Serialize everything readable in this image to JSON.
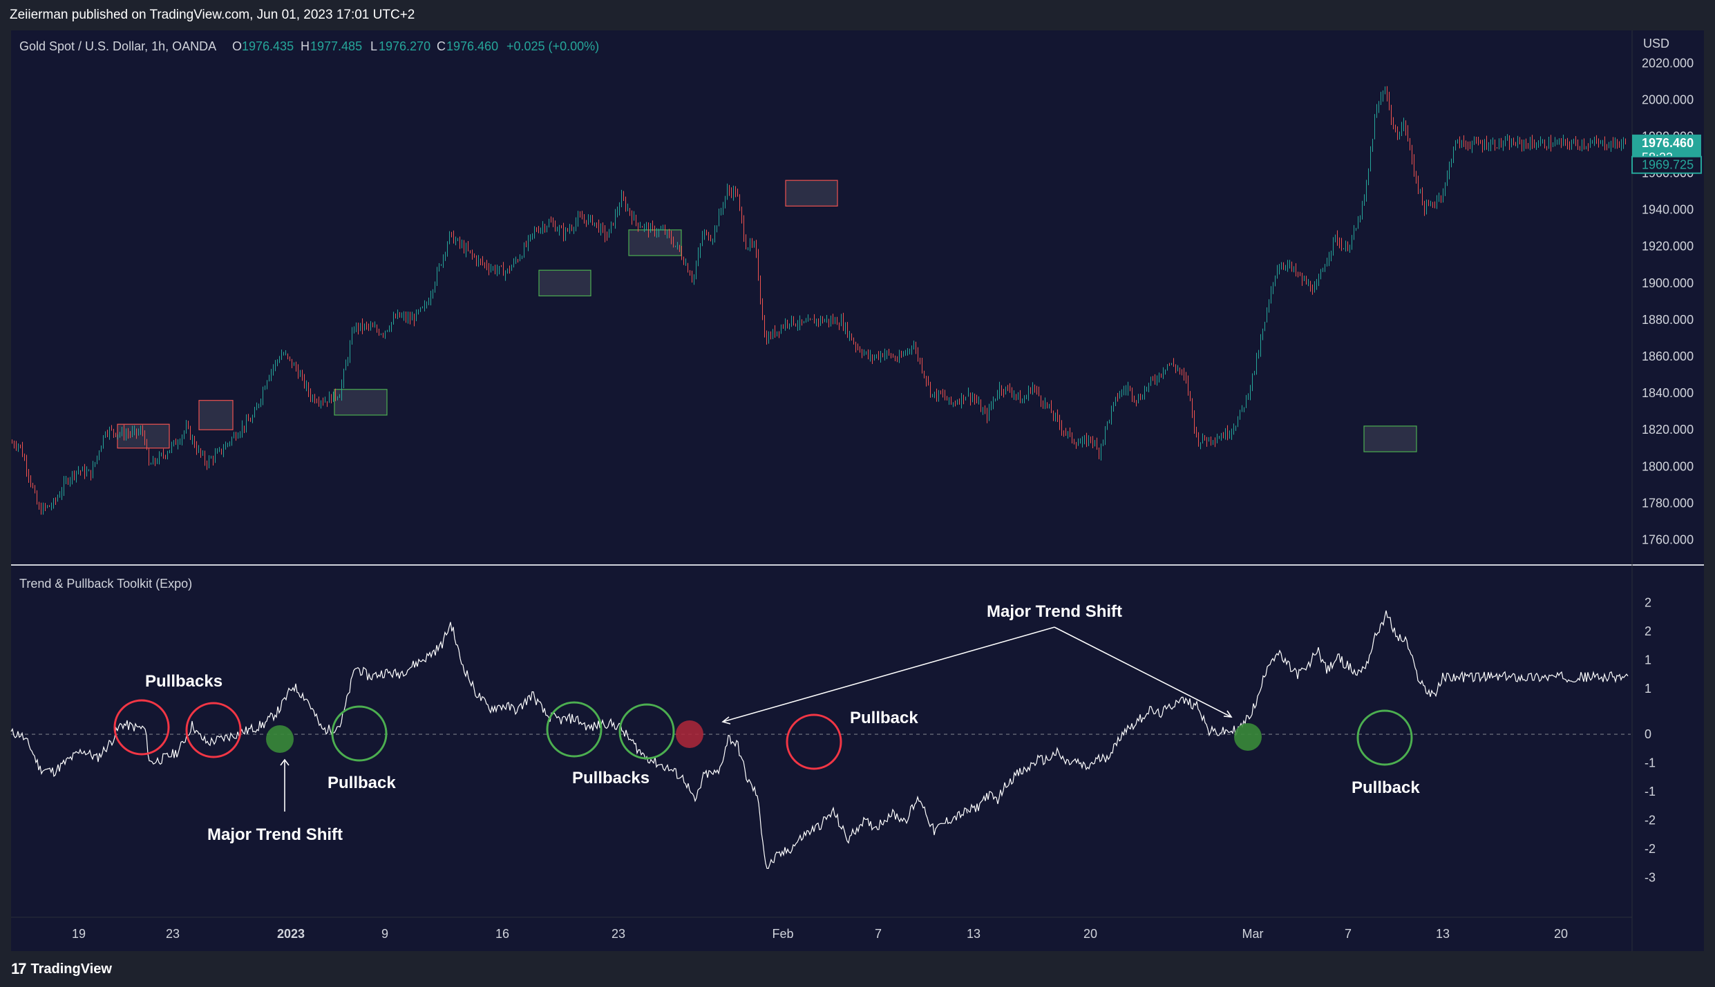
{
  "header": {
    "publisher": "Zeiierman published on TradingView.com, Jun 01, 2023 17:01 UTC+2"
  },
  "footer": {
    "brand": "TradingView"
  },
  "colors": {
    "background": "#131631",
    "up_candle": "#26a69a",
    "down_candle": "#ef5350",
    "price_tag": "#26a69a",
    "green_circle": "#4caf50",
    "red_circle": "#f23645",
    "oscillator_line": "#ffffff"
  },
  "chart_data": [
    {
      "type": "candlestick",
      "symbol_line": {
        "name": "Gold Spot / U.S. Dollar, 1h, OANDA",
        "o_label": "O",
        "o_value": "1976.435",
        "h_label": "H",
        "h_value": "1977.485",
        "l_label": "L",
        "l_value": "1976.270",
        "c_label": "C",
        "c_value": "1976.460",
        "change": "+0.025 (+0.00%)"
      },
      "currency": "USD",
      "ylim": [
        1750,
        2025
      ],
      "y_ticks": [
        "2020.000",
        "2000.000",
        "1980.000",
        "1960.000",
        "1940.000",
        "1920.000",
        "1900.000",
        "1880.000",
        "1860.000",
        "1840.000",
        "1820.000",
        "1800.000",
        "1780.000",
        "1760.000"
      ],
      "y_tick_values": [
        2020,
        2000,
        1980,
        1960,
        1940,
        1920,
        1900,
        1880,
        1860,
        1840,
        1820,
        1800,
        1780,
        1760
      ],
      "last_price_label": "1976.460",
      "countdown_label": "58:23",
      "secondary_price_label": "1969.725",
      "secondary_price_value": 1969.725,
      "last_price_value": 1976.46,
      "price_path": [
        [
          0.0,
          1813
        ],
        [
          0.01,
          1812
        ],
        [
          0.02,
          1795
        ],
        [
          0.03,
          1776
        ],
        [
          0.045,
          1779
        ],
        [
          0.06,
          1793
        ],
        [
          0.07,
          1798
        ],
        [
          0.085,
          1796
        ],
        [
          0.1,
          1820
        ],
        [
          0.115,
          1818
        ],
        [
          0.13,
          1818
        ],
        [
          0.14,
          1819
        ],
        [
          0.145,
          1800
        ],
        [
          0.16,
          1806
        ],
        [
          0.175,
          1814
        ],
        [
          0.185,
          1821
        ],
        [
          0.195,
          1810
        ],
        [
          0.205,
          1802
        ],
        [
          0.22,
          1808
        ],
        [
          0.24,
          1820
        ],
        [
          0.255,
          1827
        ],
        [
          0.27,
          1850
        ],
        [
          0.285,
          1862
        ],
        [
          0.3,
          1853
        ],
        [
          0.315,
          1838
        ],
        [
          0.33,
          1836
        ],
        [
          0.345,
          1840
        ],
        [
          0.36,
          1876
        ],
        [
          0.375,
          1876
        ],
        [
          0.39,
          1873
        ],
        [
          0.405,
          1882
        ],
        [
          0.42,
          1880
        ],
        [
          0.435,
          1887
        ],
        [
          0.45,
          1910
        ],
        [
          0.46,
          1926
        ],
        [
          0.475,
          1919
        ],
        [
          0.49,
          1912
        ],
        [
          0.505,
          1908
        ],
        [
          0.52,
          1906
        ],
        [
          0.535,
          1916
        ],
        [
          0.55,
          1929
        ],
        [
          0.565,
          1933
        ],
        [
          0.58,
          1927
        ],
        [
          0.595,
          1935
        ],
        [
          0.61,
          1934
        ],
        [
          0.625,
          1925
        ],
        [
          0.64,
          1946
        ],
        [
          0.655,
          1933
        ],
        [
          0.67,
          1929
        ],
        [
          0.685,
          1928
        ],
        [
          0.7,
          1918
        ],
        [
          0.715,
          1902
        ],
        [
          0.725,
          1927
        ],
        [
          0.735,
          1925
        ],
        [
          0.75,
          1950
        ],
        [
          0.76,
          1950
        ],
        [
          0.77,
          1921
        ],
        [
          0.78,
          1919
        ],
        [
          0.79,
          1869
        ],
        [
          0.8,
          1873
        ],
        [
          0.815,
          1880
        ],
        [
          0.83,
          1877
        ],
        [
          0.845,
          1880
        ],
        [
          0.87,
          1879
        ],
        [
          0.885,
          1866
        ],
        [
          0.9,
          1859
        ],
        [
          0.915,
          1862
        ],
        [
          0.93,
          1858
        ],
        [
          0.945,
          1867
        ],
        [
          0.955,
          1853
        ],
        [
          0.965,
          1839
        ],
        [
          0.975,
          1839
        ],
        [
          0.985,
          1834
        ],
        [
          1.0,
          1839
        ]
      ],
      "price_path_2": [
        [
          0.0,
          1839
        ],
        [
          0.01,
          1838
        ],
        [
          0.03,
          1827
        ],
        [
          0.05,
          1843
        ],
        [
          0.07,
          1841
        ],
        [
          0.085,
          1835
        ],
        [
          0.1,
          1844
        ],
        [
          0.115,
          1836
        ],
        [
          0.13,
          1829
        ],
        [
          0.145,
          1821
        ],
        [
          0.16,
          1815
        ],
        [
          0.175,
          1812
        ],
        [
          0.19,
          1816
        ],
        [
          0.2,
          1807
        ],
        [
          0.215,
          1825
        ],
        [
          0.23,
          1839
        ],
        [
          0.245,
          1843
        ],
        [
          0.26,
          1836
        ],
        [
          0.275,
          1844
        ],
        [
          0.29,
          1849
        ],
        [
          0.305,
          1856
        ],
        [
          0.32,
          1854
        ],
        [
          0.335,
          1845
        ],
        [
          0.35,
          1814
        ],
        [
          0.365,
          1815
        ],
        [
          0.38,
          1816
        ],
        [
          0.395,
          1818
        ],
        [
          0.41,
          1824
        ],
        [
          0.425,
          1837
        ],
        [
          0.44,
          1857
        ],
        [
          0.455,
          1882
        ],
        [
          0.47,
          1908
        ],
        [
          0.485,
          1911
        ],
        [
          0.5,
          1905
        ],
        [
          0.515,
          1900
        ],
        [
          0.53,
          1896
        ],
        [
          0.545,
          1912
        ],
        [
          0.56,
          1925
        ],
        [
          0.575,
          1918
        ],
        [
          0.59,
          1928
        ],
        [
          0.605,
          1947
        ],
        [
          0.62,
          1991
        ],
        [
          0.635,
          2008
        ],
        [
          0.65,
          1980
        ],
        [
          0.665,
          1987
        ],
        [
          0.68,
          1960
        ],
        [
          0.695,
          1940
        ],
        [
          0.71,
          1944
        ],
        [
          0.725,
          1951
        ],
        [
          0.74,
          1976
        ]
      ],
      "supply_boxes": [
        {
          "from": 1823,
          "to": 1810
        },
        {
          "from": 1836,
          "to": 1820
        },
        {
          "from": 1956,
          "to": 1942
        }
      ],
      "demand_boxes": [
        {
          "from": 1842,
          "to": 1828
        },
        {
          "from": 1907,
          "to": 1893
        },
        {
          "from": 1929,
          "to": 1915
        },
        {
          "from": 1822,
          "to": 1808
        }
      ]
    },
    {
      "type": "line",
      "title": "Trend & Pullback Toolkit (Expo)",
      "ylim": [
        -3.1,
        2.45
      ],
      "y_ticks": [
        "2",
        "2",
        "1",
        "1",
        "0",
        "-1",
        "-1",
        "-2",
        "-2",
        "-3"
      ],
      "y_tick_values": [
        2.3,
        1.8,
        1.3,
        0.8,
        0,
        -0.5,
        -1.0,
        -1.5,
        -2.0,
        -2.5
      ],
      "zero_line": 0,
      "oscillator_path": [
        [
          0.0,
          0.02
        ],
        [
          0.01,
          0.0
        ],
        [
          0.02,
          -0.22
        ],
        [
          0.03,
          -0.6
        ],
        [
          0.045,
          -0.65
        ],
        [
          0.06,
          -0.45
        ],
        [
          0.075,
          -0.28
        ],
        [
          0.09,
          -0.42
        ],
        [
          0.105,
          -0.12
        ],
        [
          0.115,
          0.18
        ],
        [
          0.13,
          0.12
        ],
        [
          0.14,
          0.1
        ],
        [
          0.145,
          -0.5
        ],
        [
          0.16,
          -0.42
        ],
        [
          0.175,
          -0.3
        ],
        [
          0.19,
          0.18
        ],
        [
          0.195,
          0.0
        ],
        [
          0.205,
          -0.15
        ],
        [
          0.22,
          -0.08
        ],
        [
          0.235,
          0.0
        ],
        [
          0.25,
          0.08
        ],
        [
          0.265,
          0.18
        ],
        [
          0.28,
          0.42
        ],
        [
          0.295,
          0.85
        ],
        [
          0.31,
          0.6
        ],
        [
          0.325,
          0.08
        ],
        [
          0.335,
          0.08
        ],
        [
          0.345,
          0.18
        ],
        [
          0.36,
          1.18
        ],
        [
          0.375,
          1.0
        ],
        [
          0.39,
          1.08
        ],
        [
          0.405,
          1.05
        ],
        [
          0.42,
          1.2
        ],
        [
          0.435,
          1.35
        ],
        [
          0.45,
          1.55
        ],
        [
          0.46,
          1.95
        ],
        [
          0.47,
          1.3
        ],
        [
          0.485,
          0.75
        ],
        [
          0.5,
          0.45
        ],
        [
          0.515,
          0.5
        ],
        [
          0.53,
          0.42
        ],
        [
          0.545,
          0.7
        ],
        [
          0.56,
          0.32
        ],
        [
          0.575,
          0.25
        ],
        [
          0.59,
          0.28
        ],
        [
          0.605,
          0.1
        ],
        [
          0.62,
          0.2
        ],
        [
          0.635,
          0.15
        ],
        [
          0.645,
          -0.05
        ],
        [
          0.66,
          -0.35
        ],
        [
          0.675,
          -0.5
        ],
        [
          0.69,
          -0.62
        ],
        [
          0.705,
          -0.8
        ],
        [
          0.715,
          -1.2
        ],
        [
          0.725,
          -0.7
        ],
        [
          0.74,
          -0.68
        ],
        [
          0.75,
          -0.05
        ],
        [
          0.76,
          -0.2
        ],
        [
          0.77,
          -0.8
        ],
        [
          0.78,
          -1.05
        ],
        [
          0.79,
          -2.35
        ],
        [
          0.8,
          -2.15
        ],
        [
          0.815,
          -2.0
        ],
        [
          0.83,
          -1.75
        ],
        [
          0.845,
          -1.6
        ],
        [
          0.86,
          -1.35
        ],
        [
          0.875,
          -1.85
        ],
        [
          0.89,
          -1.52
        ],
        [
          0.905,
          -1.62
        ],
        [
          0.92,
          -1.38
        ],
        [
          0.935,
          -1.5
        ],
        [
          0.95,
          -1.1
        ],
        [
          0.965,
          -1.7
        ],
        [
          0.98,
          -1.5
        ],
        [
          1.0,
          -1.35
        ]
      ],
      "oscillator_path_2": [
        [
          0.0,
          -1.35
        ],
        [
          0.015,
          -1.28
        ],
        [
          0.03,
          -1.05
        ],
        [
          0.045,
          -1.15
        ],
        [
          0.06,
          -0.85
        ],
        [
          0.075,
          -0.7
        ],
        [
          0.09,
          -0.62
        ],
        [
          0.105,
          -0.45
        ],
        [
          0.12,
          -0.45
        ],
        [
          0.135,
          -0.32
        ],
        [
          0.15,
          -0.5
        ],
        [
          0.165,
          -0.48
        ],
        [
          0.18,
          -0.6
        ],
        [
          0.195,
          -0.45
        ],
        [
          0.21,
          -0.4
        ],
        [
          0.225,
          -0.2
        ],
        [
          0.235,
          0.05
        ],
        [
          0.245,
          0.12
        ],
        [
          0.26,
          0.25
        ],
        [
          0.275,
          0.42
        ],
        [
          0.29,
          0.35
        ],
        [
          0.305,
          0.45
        ],
        [
          0.32,
          0.62
        ],
        [
          0.335,
          0.55
        ],
        [
          0.35,
          0.5
        ],
        [
          0.365,
          0.05
        ],
        [
          0.38,
          0.03
        ],
        [
          0.395,
          0.05
        ],
        [
          0.41,
          0.08
        ],
        [
          0.425,
          0.28
        ],
        [
          0.44,
          0.62
        ],
        [
          0.455,
          1.25
        ],
        [
          0.47,
          1.42
        ],
        [
          0.485,
          1.2
        ],
        [
          0.5,
          1.05
        ],
        [
          0.515,
          1.15
        ],
        [
          0.53,
          1.5
        ],
        [
          0.545,
          1.1
        ],
        [
          0.56,
          1.35
        ],
        [
          0.575,
          1.2
        ],
        [
          0.59,
          1.05
        ],
        [
          0.605,
          1.25
        ],
        [
          0.62,
          1.78
        ],
        [
          0.635,
          2.1
        ],
        [
          0.65,
          1.7
        ],
        [
          0.665,
          1.62
        ],
        [
          0.68,
          1.05
        ],
        [
          0.695,
          0.75
        ],
        [
          0.71,
          0.72
        ],
        [
          0.72,
          1.0
        ]
      ]
    }
  ],
  "x_axis": {
    "labels": [
      "19",
      "23",
      "2023",
      "9",
      "16",
      "23",
      "Feb",
      "7",
      "13",
      "20",
      "Mar",
      "7",
      "13",
      "20"
    ],
    "bold_labels": [
      "2023"
    ]
  },
  "annotations": {
    "pullbacks_left": "Pullbacks",
    "pullback_1": "Pullback",
    "major_trend_shift_1": "Major Trend Shift",
    "pullbacks_mid": "Pullbacks",
    "pullback_2": "Pullback",
    "major_trend_shift_2": "Major Trend Shift",
    "pullback_3": "Pullback"
  }
}
